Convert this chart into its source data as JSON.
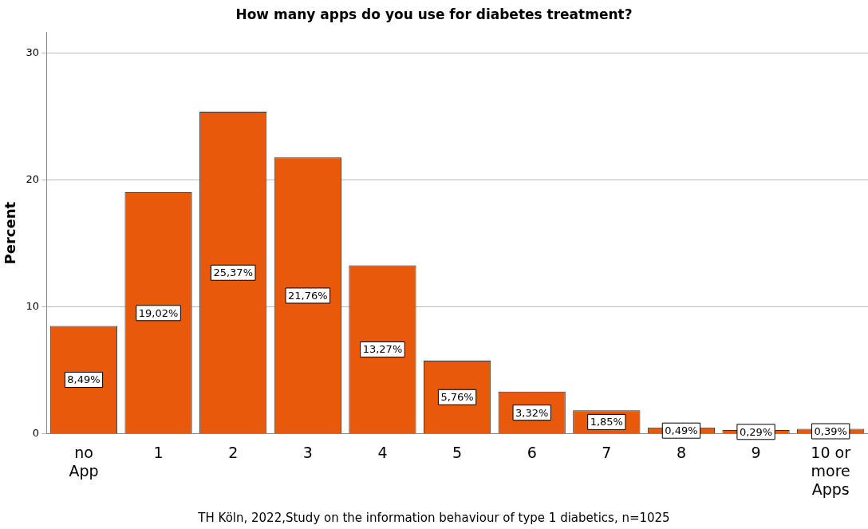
{
  "chart_data": {
    "type": "bar",
    "title": "How many apps do you use for diabetes treatment?",
    "ylabel": "Percent",
    "categories": [
      "no App",
      "1",
      "2",
      "3",
      "4",
      "5",
      "6",
      "7",
      "8",
      "9",
      "10 or more Apps"
    ],
    "values": [
      8.49,
      19.02,
      25.37,
      21.76,
      13.27,
      5.76,
      3.32,
      1.85,
      0.49,
      0.29,
      0.39
    ],
    "value_labels": [
      "8,49%",
      "19,02%",
      "25,37%",
      "21,76%",
      "13,27%",
      "5,76%",
      "3,32%",
      "1,85%",
      "0,49%",
      "0,29%",
      "0,39%"
    ],
    "color": "#e8590c",
    "ylim": [
      0,
      31.6
    ],
    "yticks": [
      0,
      10,
      20,
      30
    ],
    "grid": "y",
    "legend": false,
    "annotations": [
      "TH Köln, 2022,Study on the information behaviour of type 1 diabetics, n=1025"
    ]
  }
}
